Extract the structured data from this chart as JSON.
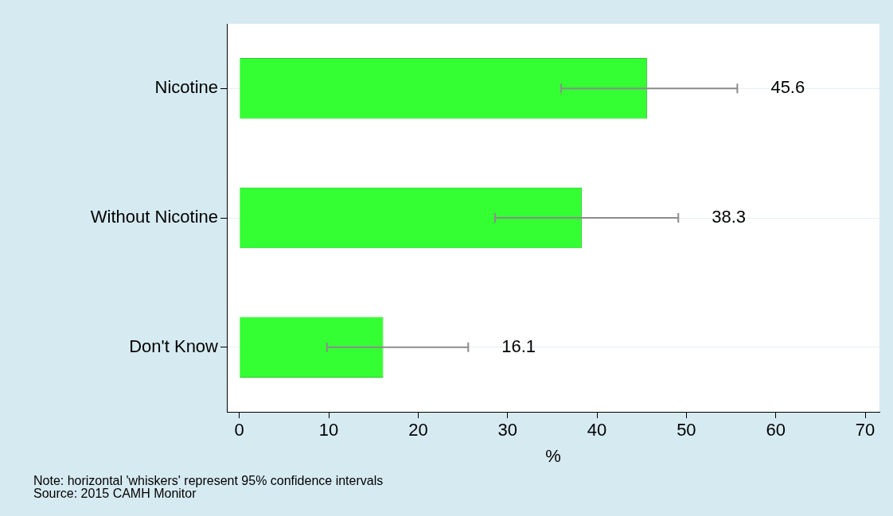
{
  "chart_data": {
    "type": "bar",
    "orientation": "horizontal",
    "categories": [
      "Nicotine",
      "Without Nicotine",
      "Don't Know"
    ],
    "values": [
      45.6,
      38.3,
      16.1
    ],
    "color": "#33ff33",
    "errors": [
      [
        36.0,
        55.7
      ],
      [
        28.6,
        49.1
      ],
      [
        9.8,
        25.6
      ]
    ],
    "xlim": [
      -1.4,
      71.6
    ],
    "xticks": [
      0,
      10,
      20,
      30,
      40,
      50,
      60,
      70
    ],
    "xlabel": "%",
    "grid": "y",
    "annotations": [
      {
        "text": "45.6",
        "x": 55.7,
        "y": "Nicotine"
      },
      {
        "text": "38.3",
        "x": 49.1,
        "y": "Without Nicotine"
      },
      {
        "text": "16.1",
        "x": 25.6,
        "y": "Don't Know"
      },
      "Note: horizontal 'whiskers' represent 95% confidence intervals",
      "Source: 2015 CAMH Monitor"
    ]
  }
}
